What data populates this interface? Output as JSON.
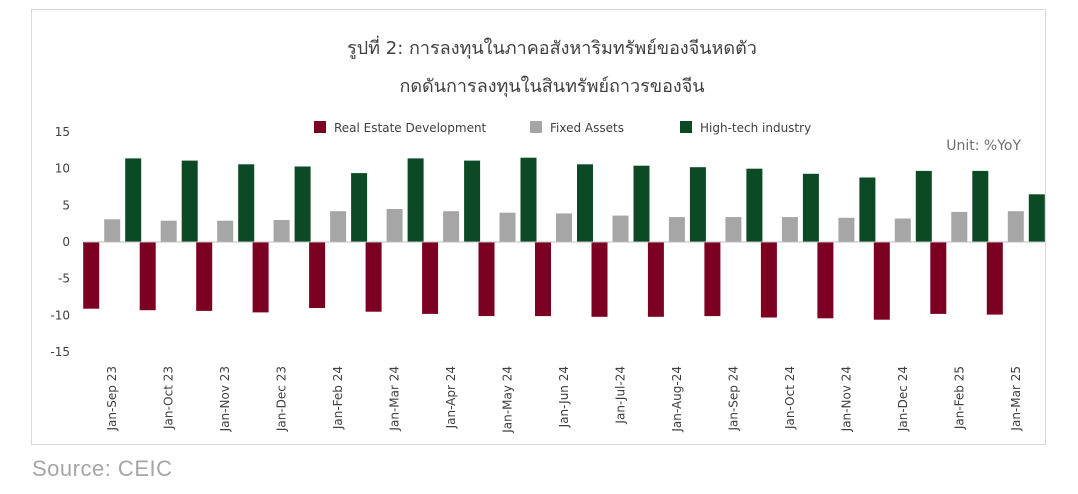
{
  "chart_data": {
    "type": "bar",
    "title_line1": "รูปที่ 2: การลงทุนในภาคอสังหาริมทรัพย์ของจีนหดตัว",
    "title_line2": "กดดันการลงทุนในสินทรัพย์ถาวรของจีน",
    "unit_label": "Unit: %YoY",
    "categories": [
      "Jan-Sep 23",
      "Jan-Oct 23",
      "Jan-Nov 23",
      "Jan-Dec 23",
      "Jan-Feb 24",
      "Jan-Mar 24",
      "Jan-Apr 24",
      "Jan-May 24",
      "Jan-Jun 24",
      "Jan-Jul-24",
      "Jan-Aug-24",
      "Jan-Sep 24",
      "Jan-Oct 24",
      "Jan-Nov 24",
      "Jan-Dec 24",
      "Jan-Feb 25",
      "Jan-Mar 25"
    ],
    "series": [
      {
        "name": "Real Estate Development",
        "color": "#7b0021",
        "values": [
          -9.1,
          -9.3,
          -9.4,
          -9.6,
          -9.0,
          -9.5,
          -9.8,
          -10.1,
          -10.1,
          -10.2,
          -10.2,
          -10.1,
          -10.3,
          -10.4,
          -10.6,
          -9.8,
          -9.9
        ]
      },
      {
        "name": "Fixed Assets",
        "color": "#a6a6a6",
        "values": [
          3.1,
          2.9,
          2.9,
          3.0,
          4.2,
          4.5,
          4.2,
          4.0,
          3.9,
          3.6,
          3.4,
          3.4,
          3.4,
          3.3,
          3.2,
          4.1,
          4.2
        ]
      },
      {
        "name": "High-tech industry",
        "color": "#0b4a24",
        "values": [
          11.4,
          11.1,
          10.6,
          10.3,
          9.4,
          11.4,
          11.1,
          11.5,
          10.6,
          10.4,
          10.2,
          10.0,
          9.3,
          8.8,
          9.7,
          9.7,
          6.5
        ]
      }
    ],
    "ylim": [
      -15,
      15
    ],
    "yticks": [
      "15",
      "10",
      "5",
      "0",
      "-5",
      "-10",
      "-15"
    ],
    "ytick_values": [
      15,
      10,
      5,
      0,
      -5,
      -10,
      -15
    ],
    "grid": false,
    "legend_position": "top-center"
  },
  "source": "Source: CEIC"
}
